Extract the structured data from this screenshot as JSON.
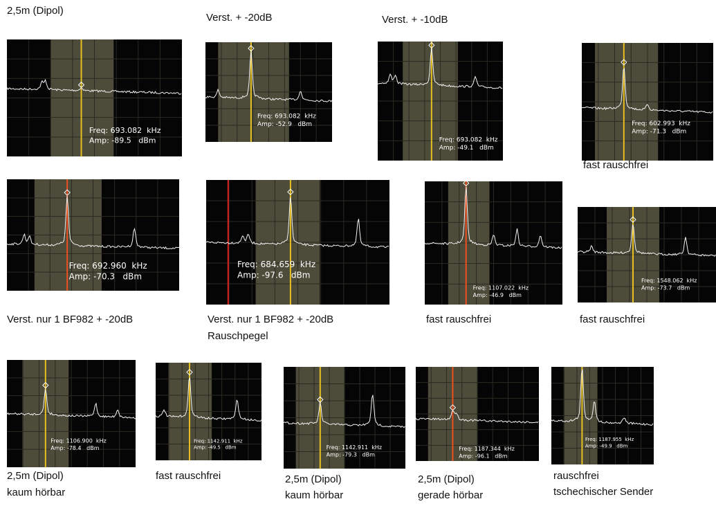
{
  "panels": [
    {
      "caption": [
        "2,5m (Dipol)"
      ],
      "freq": "Freq: 693.082  kHz",
      "amp": "Amp: -89.5   dBm"
    },
    {
      "caption": [
        "Verst. + -20dB"
      ],
      "freq": "Freq: 693.082  kHz",
      "amp": "Amp: -52.9   dBm"
    },
    {
      "caption": [
        "Verst. + -10dB"
      ],
      "freq": "Freq: 693.082  kHz",
      "amp": "Amp: -49.1   dBm"
    },
    {
      "caption": [
        "fast rauschfrei"
      ],
      "freq": "Freq: 602.993  kHz",
      "amp": "Amp: -71.3   dBm"
    },
    {
      "caption": [
        "Verst. nur 1 BF982 + -20dB"
      ],
      "freq": "Freq: 692.960  kHz",
      "amp": "Amp: -70.3   dBm"
    },
    {
      "caption": [
        "Verst. nur 1 BF982 + -20dB",
        "Rauschpegel"
      ],
      "freq": "Freq: 684.659  kHz",
      "amp": "Amp: -97.6   dBm"
    },
    {
      "caption": [
        "fast rauschfrei"
      ],
      "freq": "Freq: 1107.022  kHz",
      "amp": "Amp: -46.9   dBm"
    },
    {
      "caption": [
        "fast rauschfrei"
      ],
      "freq": "Freq: 1548.062  kHz",
      "amp": "Amp: -73.7   dBm"
    },
    {
      "caption": [
        "2,5m (Dipol)",
        "kaum hörbar"
      ],
      "freq": "Freq: 1106.900  kHz",
      "amp": "Amp: -78.4   dBm"
    },
    {
      "caption": [
        "fast rauschfrei"
      ],
      "freq": "Freq: 1142.911  kHz",
      "amp": "Amp: -49.5   dBm"
    },
    {
      "caption": [
        "2,5m (Dipol)",
        "kaum hörbar"
      ],
      "freq": "Freq: 1142.911  kHz",
      "amp": "Amp: -79.3   dBm"
    },
    {
      "caption": [
        "2,5m (Dipol)",
        "gerade hörbar"
      ],
      "freq": "Freq: 1187.344  kHz",
      "amp": "Amp: -96.1   dBm"
    },
    {
      "caption": [
        "rauschfrei",
        "tschechischer Sender"
      ],
      "freq": "Freq: 1187.955  kHz",
      "amp": "Amp: -49.9   dBm"
    }
  ]
}
